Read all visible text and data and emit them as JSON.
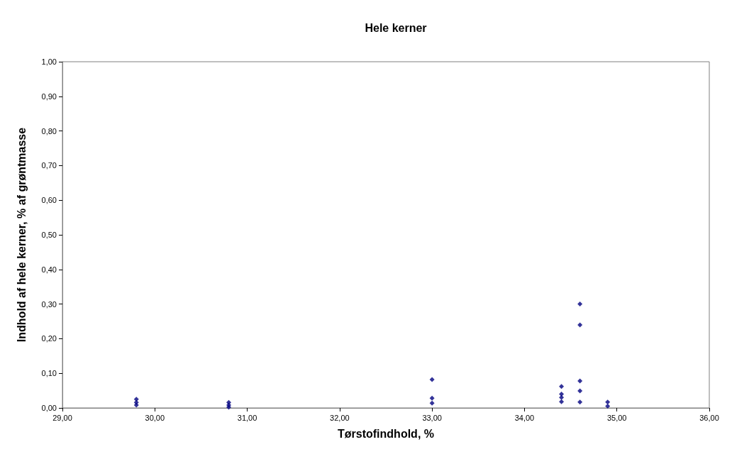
{
  "chart_data": {
    "type": "scatter",
    "title": "Hele kerner",
    "xlabel": "Tørstofindhold, %",
    "ylabel": "Indhold af hele kerner, % af grøntmasse",
    "x": [
      29.8,
      29.8,
      29.8,
      30.8,
      30.8,
      30.8,
      33.0,
      33.0,
      33.0,
      34.4,
      34.4,
      34.4,
      34.4,
      34.6,
      34.6,
      34.6,
      34.6,
      34.6,
      34.9,
      34.9
    ],
    "values": [
      0.025,
      0.016,
      0.008,
      0.016,
      0.008,
      0.002,
      0.082,
      0.028,
      0.014,
      0.062,
      0.04,
      0.03,
      0.018,
      0.3,
      0.24,
      0.078,
      0.049,
      0.017,
      0.017,
      0.005
    ],
    "color": "#000080",
    "marker": "diamond",
    "grid": false,
    "xlim": [
      29,
      36
    ],
    "xticks": [
      {
        "value": 29,
        "label": "29,00"
      },
      {
        "value": 30,
        "label": "30,00"
      },
      {
        "value": 31,
        "label": "31,00"
      },
      {
        "value": 32,
        "label": "32,00"
      },
      {
        "value": 33,
        "label": "33,00"
      },
      {
        "value": 34,
        "label": "34,00"
      },
      {
        "value": 35,
        "label": "35,00"
      },
      {
        "value": 36,
        "label": "36,00"
      }
    ],
    "ylim": [
      0,
      1
    ],
    "yticks": [
      {
        "value": 0,
        "label": "0,00"
      },
      {
        "value": 0.1,
        "label": "0,10"
      },
      {
        "value": 0.2,
        "label": "0,20"
      },
      {
        "value": 0.3,
        "label": "0,30"
      },
      {
        "value": 0.4,
        "label": "0,40"
      },
      {
        "value": 0.5,
        "label": "0,50"
      },
      {
        "value": 0.6,
        "label": "0,60"
      },
      {
        "value": 0.7,
        "label": "0,70"
      },
      {
        "value": 0.8,
        "label": "0,80"
      },
      {
        "value": 0.9,
        "label": "0,90"
      },
      {
        "value": 1,
        "label": "1,00"
      }
    ]
  }
}
